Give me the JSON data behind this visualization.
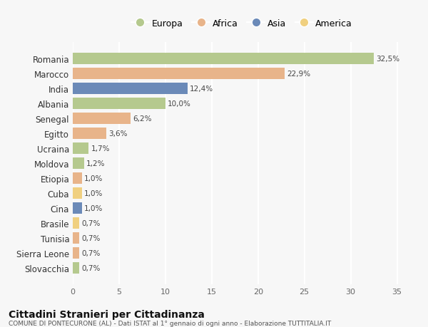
{
  "countries": [
    "Romania",
    "Marocco",
    "India",
    "Albania",
    "Senegal",
    "Egitto",
    "Ucraina",
    "Moldova",
    "Etiopia",
    "Cuba",
    "Cina",
    "Brasile",
    "Tunisia",
    "Sierra Leone",
    "Slovacchia"
  ],
  "values": [
    32.5,
    22.9,
    12.4,
    10.0,
    6.2,
    3.6,
    1.7,
    1.2,
    1.0,
    1.0,
    1.0,
    0.7,
    0.7,
    0.7,
    0.7
  ],
  "labels": [
    "32,5%",
    "22,9%",
    "12,4%",
    "10,0%",
    "6,2%",
    "3,6%",
    "1,7%",
    "1,2%",
    "1,0%",
    "1,0%",
    "1,0%",
    "0,7%",
    "0,7%",
    "0,7%",
    "0,7%"
  ],
  "continents": [
    "Europa",
    "Africa",
    "Asia",
    "Europa",
    "Africa",
    "Africa",
    "Europa",
    "Europa",
    "Africa",
    "America",
    "Asia",
    "America",
    "Africa",
    "Africa",
    "Europa"
  ],
  "colors": {
    "Europa": "#b5c98e",
    "Africa": "#e8b48a",
    "Asia": "#6b8ab8",
    "America": "#f0d080"
  },
  "bg_color": "#f7f7f7",
  "grid_color": "#ffffff",
  "title": "Cittadini Stranieri per Cittadinanza",
  "subtitle": "COMUNE DI PONTECURONE (AL) - Dati ISTAT al 1° gennaio di ogni anno - Elaborazione TUTTITALIA.IT",
  "xlabel_ticks": [
    0,
    5,
    10,
    15,
    20,
    25,
    30,
    35
  ],
  "xlim": [
    0,
    36.5
  ]
}
